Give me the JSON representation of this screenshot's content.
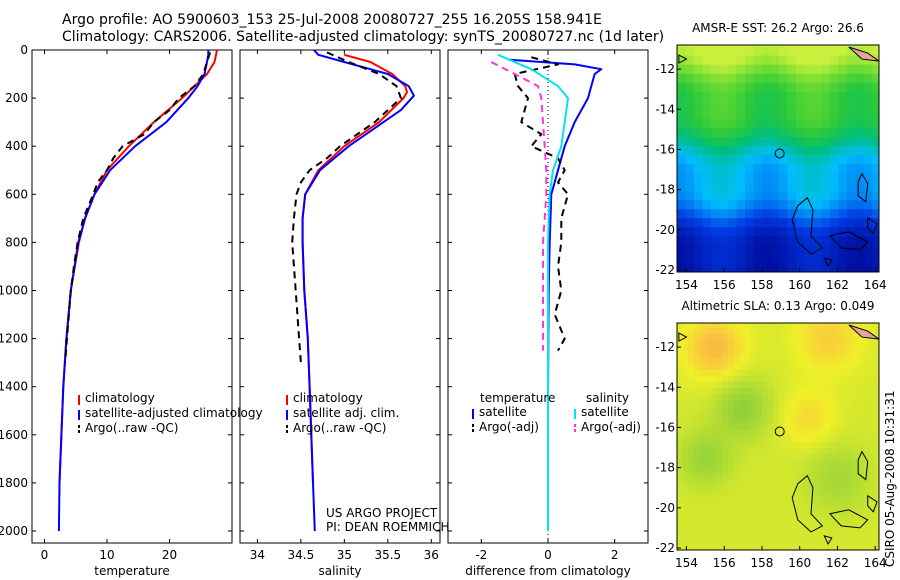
{
  "header": {
    "line1": "Argo profile: AO 5900603_153 25-Jul-2008 20080727_255 16.205S 158.941E",
    "line2": "Climatology: CARS2006. Satellite-adjusted climatology: synTS_20080727.nc (1d later)"
  },
  "footer_right": "CSIRO 05-Aug-2008 10:31:31",
  "project_note": [
    "US ARGO PROJECT",
    "PI: DEAN ROEMMICH"
  ],
  "colors": {
    "red": "#ff0000",
    "blue": "#0000ff",
    "black": "#000000",
    "cyan": "#00e5ee",
    "magenta": "#ff33dd"
  },
  "chart_data": [
    {
      "id": "temperature",
      "type": "line",
      "xlabel": "temperature",
      "ylabel": "",
      "xlim": [
        -2,
        30
      ],
      "ylim": [
        2050,
        0
      ],
      "xticks": [
        0,
        10,
        20
      ],
      "yticks": [
        0,
        200,
        400,
        600,
        800,
        1000,
        1200,
        1400,
        1600,
        1800,
        2000
      ],
      "legend": {
        "position": "lower-middle",
        "entries": [
          "climatology",
          "satellite-adjusted climatology",
          "Argo(..raw -QC)"
        ]
      },
      "series": [
        {
          "name": "climatology",
          "color": "red",
          "dash": false,
          "depth": [
            0,
            50,
            100,
            150,
            200,
            300,
            400,
            500,
            600,
            700,
            800,
            1000,
            1200,
            1400,
            1600,
            1800,
            1850
          ],
          "values": [
            27.6,
            27.2,
            26.0,
            24.0,
            22.0,
            17.5,
            13.5,
            10.0,
            8.0,
            6.5,
            5.5,
            4.2,
            3.5,
            3.0,
            2.7,
            2.4,
            2.4
          ]
        },
        {
          "name": "satellite-adjusted climatology",
          "color": "blue",
          "dash": false,
          "depth": [
            0,
            20,
            50,
            100,
            150,
            200,
            300,
            400,
            500,
            600,
            700,
            800,
            1000,
            1200,
            1400,
            1600,
            1800,
            2000
          ],
          "values": [
            26.2,
            26.2,
            26.0,
            25.6,
            24.5,
            23.0,
            19.5,
            14.5,
            10.5,
            8.0,
            6.5,
            5.4,
            4.2,
            3.5,
            3.0,
            2.7,
            2.4,
            2.3
          ]
        },
        {
          "name": "Argo(..raw -QC)",
          "color": "black",
          "dash": true,
          "depth": [
            10,
            50,
            100,
            150,
            200,
            250,
            300,
            350,
            400,
            450,
            500,
            550,
            600,
            700,
            800,
            900,
            1000,
            1200,
            1300
          ],
          "values": [
            26.5,
            26.0,
            25.4,
            24.0,
            21.5,
            20.0,
            17.5,
            16.0,
            12.5,
            11.0,
            10.0,
            8.5,
            7.8,
            6.2,
            5.3,
            4.7,
            4.2,
            3.6,
            3.3
          ]
        }
      ]
    },
    {
      "id": "salinity",
      "type": "line",
      "xlabel": "salinity",
      "ylabel": "",
      "xlim": [
        33.8,
        36.1
      ],
      "ylim": [
        2050,
        0
      ],
      "xticks": [
        34,
        34.5,
        35,
        35.5,
        36
      ],
      "yticks": [
        0,
        200,
        400,
        600,
        800,
        1000,
        1200,
        1400,
        1600,
        1800,
        2000
      ],
      "legend": {
        "position": "lower-middle",
        "entries": [
          "climatology",
          "satellite adj. clim.",
          "Argo(..raw -QC)"
        ]
      },
      "series": [
        {
          "name": "climatology",
          "color": "red",
          "dash": false,
          "depth": [
            20,
            50,
            100,
            150,
            175,
            200,
            300,
            400,
            500,
            600,
            700,
            800,
            1000,
            1200,
            1400,
            1600,
            1800
          ],
          "values": [
            35.0,
            35.3,
            35.55,
            35.7,
            35.72,
            35.68,
            35.4,
            35.0,
            34.7,
            34.55,
            34.52,
            34.52,
            34.54,
            34.58,
            34.6,
            34.62,
            34.64
          ]
        },
        {
          "name": "satellite adj. clim.",
          "color": "blue",
          "dash": false,
          "depth": [
            0,
            20,
            50,
            100,
            150,
            190,
            250,
            300,
            400,
            500,
            600,
            700,
            800,
            1000,
            1200,
            1400,
            1600,
            1800,
            2000
          ],
          "values": [
            34.65,
            34.7,
            35.0,
            35.5,
            35.74,
            35.8,
            35.65,
            35.45,
            35.05,
            34.72,
            34.55,
            34.52,
            34.52,
            34.54,
            34.58,
            34.6,
            34.62,
            34.64,
            34.66
          ]
        },
        {
          "name": "Argo(..raw -QC)",
          "color": "black",
          "dash": true,
          "depth": [
            10,
            50,
            100,
            150,
            200,
            300,
            400,
            450,
            500,
            550,
            600,
            700,
            800,
            1000,
            1200,
            1300
          ],
          "values": [
            34.8,
            35.05,
            35.4,
            35.6,
            35.65,
            35.35,
            34.95,
            34.8,
            34.6,
            34.5,
            34.45,
            34.42,
            34.4,
            34.44,
            34.48,
            34.5
          ]
        }
      ]
    },
    {
      "id": "difference",
      "type": "line",
      "xlabel": "difference from climatology",
      "ylabel": "",
      "xlim": [
        -3,
        3
      ],
      "ylim": [
        2050,
        0
      ],
      "xticks": [
        -2,
        0,
        2
      ],
      "yticks": [
        0,
        200,
        400,
        600,
        800,
        1000,
        1200,
        1400,
        1600,
        1800,
        2000
      ],
      "legend": {
        "position": "lower-middle",
        "headers": [
          "temperature",
          "salinity"
        ],
        "entries": [
          "satellite",
          "Argo(-adj)",
          "satellite",
          "Argo(-adj)"
        ]
      },
      "series": [
        {
          "name": "temperature satellite",
          "color": "blue",
          "dash": false,
          "depth": [
            40,
            60,
            80,
            100,
            150,
            200,
            300,
            400,
            500,
            600,
            800,
            1000,
            1200,
            1500,
            2000
          ],
          "values": [
            -1.2,
            0.8,
            1.6,
            1.4,
            1.3,
            1.2,
            0.8,
            0.5,
            0.3,
            0.1,
            0.05,
            0.02,
            0.01,
            0.0,
            0.0
          ]
        },
        {
          "name": "temperature Argo(-adj)",
          "color": "black",
          "dash": true,
          "depth": [
            30,
            60,
            100,
            150,
            200,
            300,
            350,
            400,
            450,
            500,
            550,
            600,
            700,
            800,
            900,
            1000,
            1100,
            1200,
            1250
          ],
          "values": [
            -0.5,
            0.3,
            -1.0,
            -0.9,
            -0.6,
            -0.8,
            -0.2,
            -0.5,
            0.3,
            0.5,
            0.3,
            0.6,
            0.4,
            0.4,
            0.3,
            0.4,
            0.2,
            0.5,
            0.3
          ]
        },
        {
          "name": "salinity satellite",
          "color": "cyan",
          "dash": false,
          "depth": [
            20,
            80,
            150,
            200,
            300,
            400,
            500,
            600,
            700,
            800,
            1000,
            1500,
            2000
          ],
          "values": [
            -1.5,
            -0.5,
            0.3,
            0.6,
            0.5,
            0.4,
            0.15,
            0.05,
            0.02,
            0.0,
            0.0,
            0.0,
            0.0
          ]
        },
        {
          "name": "salinity Argo(-adj)",
          "color": "magenta",
          "dash": true,
          "depth": [
            50,
            100,
            150,
            200,
            300,
            400,
            500,
            600,
            700,
            800,
            1000,
            1200,
            1250
          ],
          "values": [
            -1.7,
            -1.0,
            -0.3,
            -0.2,
            -0.15,
            -0.1,
            -0.05,
            -0.05,
            -0.1,
            -0.15,
            -0.15,
            -0.15,
            -0.15
          ]
        }
      ]
    },
    {
      "id": "sst_map",
      "type": "heatmap",
      "title": "AMSR-E SST: 26.2 Argo: 26.6",
      "xlim": [
        153.5,
        164.2
      ],
      "ylim": [
        -22.1,
        -10.8
      ],
      "xticks": [
        154,
        156,
        158,
        160,
        162,
        164
      ],
      "yticks": [
        -12,
        -14,
        -16,
        -18,
        -20,
        -22
      ],
      "argo_position": {
        "lon": 158.94,
        "lat": -16.2
      }
    },
    {
      "id": "sla_map",
      "type": "heatmap",
      "title": "Altimetric SLA: 0.13 Argo: 0.049",
      "xlim": [
        153.5,
        164.2
      ],
      "ylim": [
        -22.1,
        -10.8
      ],
      "xticks": [
        154,
        156,
        158,
        160,
        162,
        164
      ],
      "yticks": [
        -12,
        -14,
        -16,
        -18,
        -20,
        -22
      ],
      "argo_position": {
        "lon": 158.94,
        "lat": -16.2
      }
    }
  ]
}
